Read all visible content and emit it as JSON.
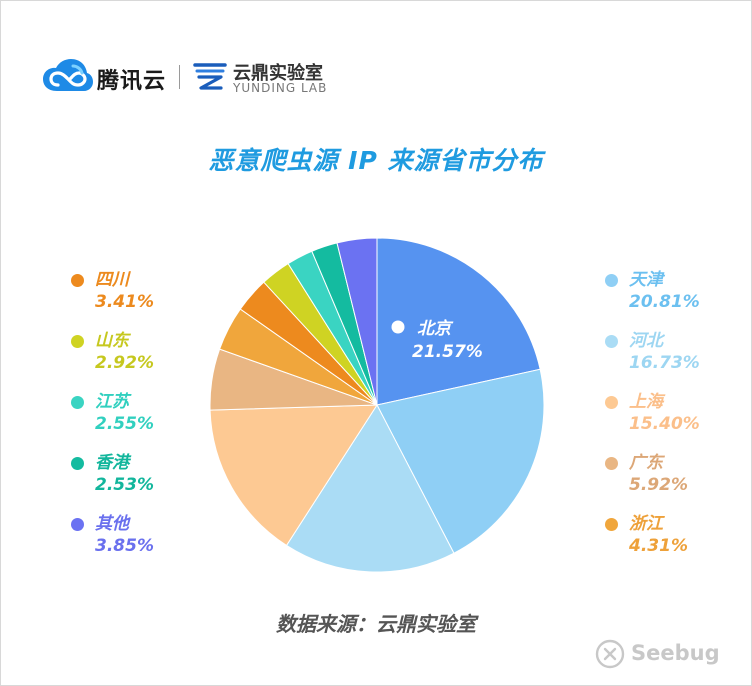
{
  "branding": {
    "tencent_text": "腾讯云",
    "yunding_cn": "云鼎实验室",
    "yunding_en": "YUNDING LAB",
    "watermark": "Seebug"
  },
  "chart_data": {
    "type": "pie",
    "title": "恶意爬虫源 IP 来源省市分布",
    "source_note": "数据来源：云鼎实验室",
    "slices": [
      {
        "label": "北京",
        "value": 21.57,
        "pct_text": "21.57%",
        "color": "#5693f0"
      },
      {
        "label": "天津",
        "value": 20.81,
        "pct_text": "20.81%",
        "color": "#8fcff5"
      },
      {
        "label": "河北",
        "value": 16.73,
        "pct_text": "16.73%",
        "color": "#aadcf5"
      },
      {
        "label": "上海",
        "value": 15.4,
        "pct_text": "15.40%",
        "color": "#fdc993"
      },
      {
        "label": "广东",
        "value": 5.92,
        "pct_text": "5.92%",
        "color": "#e9b683"
      },
      {
        "label": "浙江",
        "value": 4.31,
        "pct_text": "4.31%",
        "color": "#f0a63c"
      },
      {
        "label": "四川",
        "value": 3.41,
        "pct_text": "3.41%",
        "color": "#ed8a1e"
      },
      {
        "label": "山东",
        "value": 2.92,
        "pct_text": "2.92%",
        "color": "#cfd323"
      },
      {
        "label": "江苏",
        "value": 2.55,
        "pct_text": "2.55%",
        "color": "#3ad4c2"
      },
      {
        "label": "香港",
        "value": 2.53,
        "pct_text": "2.53%",
        "color": "#14bba0"
      },
      {
        "label": "其他",
        "value": 3.85,
        "pct_text": "3.85%",
        "color": "#6b72f2"
      }
    ],
    "legend_left": [
      6,
      7,
      8,
      9,
      10
    ],
    "legend_right": [
      1,
      2,
      3,
      4,
      5
    ],
    "legend_text_colors": {
      "天津": "#6cc0f0",
      "河北": "#9dd6f2",
      "上海": "#fbbf8a",
      "广东": "#dca777",
      "浙江": "#eea13a",
      "四川": "#ec8a1e",
      "山东": "#c6c81f",
      "江苏": "#31d0bf",
      "香港": "#12b69c",
      "其他": "#6a70ee"
    }
  }
}
